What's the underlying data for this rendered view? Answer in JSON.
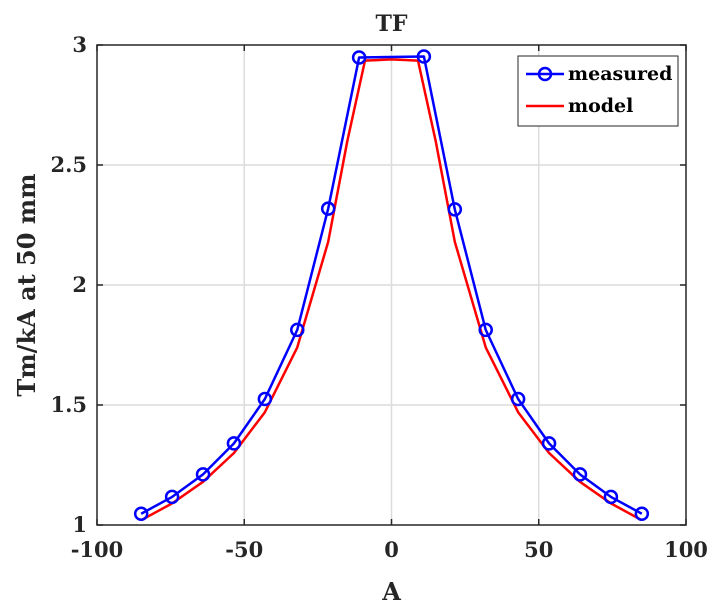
{
  "chart_data": {
    "type": "line",
    "title": "TF",
    "xlabel": "A",
    "ylabel": "Tm/kA at 50 mm",
    "xlim": [
      -100,
      100
    ],
    "ylim": [
      1,
      3
    ],
    "xticks": [
      -100,
      -50,
      0,
      50,
      100
    ],
    "yticks": [
      1,
      1.5,
      2,
      2.5,
      3
    ],
    "xtick_labels": [
      "-100",
      "-50",
      "0",
      "50",
      "100"
    ],
    "ytick_labels": [
      "1",
      "1.5",
      "2",
      "2.5",
      "3"
    ],
    "grid": true,
    "legend_position": "top-right",
    "series": [
      {
        "name": "measured",
        "color": "#0000ff",
        "marker": "circle",
        "x": [
          -85,
          -74.5,
          -64,
          -53.5,
          -43,
          -32,
          -21.5,
          -11,
          11,
          21.5,
          32,
          43,
          53.5,
          64,
          74.5,
          85
        ],
        "y": [
          1.047,
          1.117,
          1.211,
          1.34,
          1.525,
          1.813,
          2.318,
          2.948,
          2.952,
          2.315,
          1.813,
          1.525,
          1.34,
          1.211,
          1.117,
          1.047
        ]
      },
      {
        "name": "model",
        "color": "#ff0000",
        "marker": "none",
        "x": [
          -85,
          -74.5,
          -64,
          -53.5,
          -43,
          -32,
          -21.5,
          -15,
          -9,
          0,
          9,
          15,
          21.5,
          32,
          43,
          53.5,
          64,
          74.5,
          85
        ],
        "y": [
          1.02,
          1.09,
          1.18,
          1.3,
          1.47,
          1.74,
          2.18,
          2.6,
          2.935,
          2.94,
          2.935,
          2.6,
          2.18,
          1.74,
          1.47,
          1.3,
          1.18,
          1.09,
          1.02
        ]
      }
    ]
  }
}
